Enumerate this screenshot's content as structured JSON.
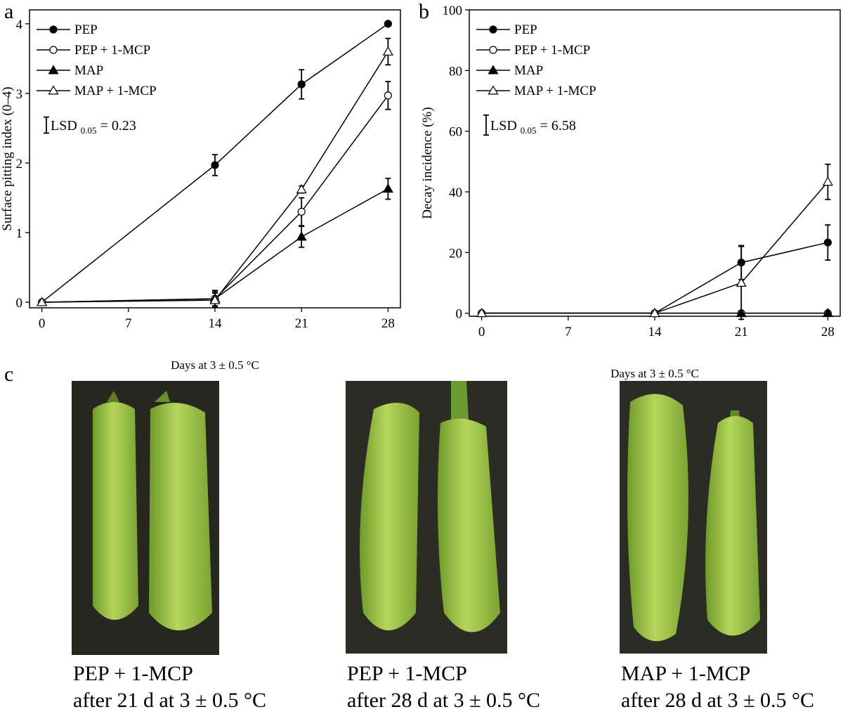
{
  "panels": {
    "a": "a",
    "b": "b",
    "c": "c"
  },
  "chart_data": [
    {
      "type": "line",
      "panel": "a",
      "xlabel": "Days at 3 ± 0.5 °C",
      "ylabel": "Surface pitting index (0–4)",
      "x": [
        0,
        14,
        21,
        28
      ],
      "xticks": [
        0,
        7,
        14,
        21,
        28
      ],
      "yticks": [
        0,
        1,
        2,
        3,
        4
      ],
      "xlim": [
        -1,
        29
      ],
      "ylim": [
        -0.08,
        4.2
      ],
      "grid": false,
      "legend_position": "top-left",
      "lsd": {
        "label": "LSD",
        "sub": "0.05",
        "value": "= 0.23",
        "magnitude": 0.23
      },
      "series": [
        {
          "name": "PEP",
          "marker": "filled-circle",
          "values": [
            0,
            1.97,
            3.13,
            4.0
          ],
          "errors": [
            0,
            0.15,
            0.21,
            0
          ]
        },
        {
          "name": "PEP + 1-MCP",
          "marker": "open-circle",
          "values": [
            0,
            0.05,
            1.3,
            2.97
          ],
          "errors": [
            0,
            0.12,
            0.2,
            0.2
          ]
        },
        {
          "name": "MAP",
          "marker": "filled-triangle",
          "values": [
            0,
            0.05,
            0.94,
            1.63
          ],
          "errors": [
            0,
            0.1,
            0.15,
            0.15
          ]
        },
        {
          "name": "MAP + 1-MCP",
          "marker": "open-triangle",
          "values": [
            0,
            0.03,
            1.62,
            3.6
          ],
          "errors": [
            0,
            0.1,
            0.05,
            0.19
          ]
        }
      ]
    },
    {
      "type": "line",
      "panel": "b",
      "xlabel": "Days at 3 ± 0.5 °C",
      "ylabel": "Decay incidence (%)",
      "x": [
        0,
        14,
        21,
        28
      ],
      "xticks": [
        0,
        7,
        14,
        21,
        28
      ],
      "yticks": [
        0,
        20,
        40,
        60,
        80,
        100
      ],
      "xlim": [
        -1,
        29
      ],
      "ylim": [
        -1,
        100
      ],
      "grid": false,
      "legend_position": "top-left",
      "lsd": {
        "label": "LSD",
        "sub": "0.05",
        "value": "= 6.58",
        "magnitude": 6.58
      },
      "series": [
        {
          "name": "PEP",
          "marker": "filled-circle",
          "values": [
            0,
            0,
            16.7,
            23.3
          ],
          "errors": [
            0,
            0,
            5.6,
            5.8
          ]
        },
        {
          "name": "PEP + 1-MCP",
          "marker": "open-circle",
          "values": [
            0,
            0,
            0,
            0
          ],
          "errors": [
            0,
            0,
            0,
            0
          ]
        },
        {
          "name": "MAP",
          "marker": "filled-triangle",
          "values": [
            0,
            0,
            0,
            0
          ],
          "errors": [
            0,
            0,
            0,
            0
          ]
        },
        {
          "name": "MAP + 1-MCP",
          "marker": "open-triangle",
          "values": [
            0,
            0,
            10,
            43.3
          ],
          "errors": [
            0,
            0,
            12,
            5.8
          ]
        }
      ]
    }
  ],
  "photos": [
    {
      "caption_line1": "PEP + 1-MCP",
      "caption_line2": "after 21 d at 3 ± 0.5 °C"
    },
    {
      "caption_line1": "PEP + 1-MCP",
      "caption_line2": "after 28 d at 3 ± 0.5 °C"
    },
    {
      "caption_line1": "MAP + 1-MCP",
      "caption_line2": "after 28 d at 3 ± 0.5 °C"
    }
  ]
}
